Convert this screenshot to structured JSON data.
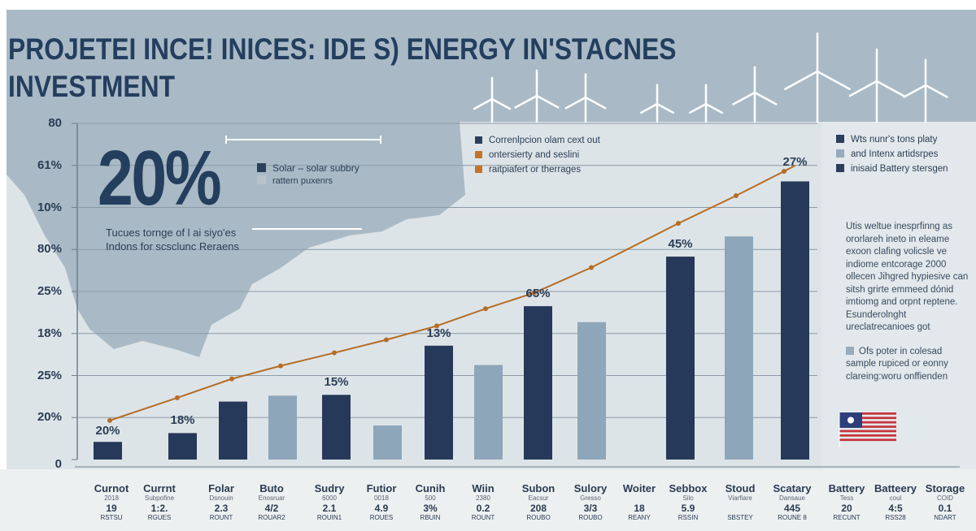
{
  "title_lines": [
    "PROJETEI INCE! INICES: IDE S) ENERGY IN'STACNES",
    "INVESTMENT"
  ],
  "highlight": {
    "value": "20%",
    "caption_lines": [
      "Tucues tornge of l ai siyo'es",
      "Indons for scsclunc Reraens"
    ]
  },
  "legend_left": [
    {
      "label": "Solar – solar subbry",
      "color": "#2b3f5c"
    },
    {
      "label": "rattern puxenrs",
      "color": "#b7c3cc"
    }
  ],
  "legend_center": [
    {
      "label": "Correnlpcion olam cext out",
      "color": "#2b3f5c"
    },
    {
      "label": "ontersierty and seslini",
      "color": "#c4742a"
    },
    {
      "label": "raitpiafert or therrages",
      "color": "#c4742a"
    }
  ],
  "legend_right": [
    {
      "label": "Wts nunr's tons platy",
      "color": "#2b3f5c"
    },
    {
      "label": "and Intenx artidsrpes",
      "color": "#97abbb"
    },
    {
      "label": "inisaid Battery stersgen",
      "color": "#2b3f5c"
    }
  ],
  "side_paragraph": "Utis weltue inesprfinng as ororlareh ineto in eleame exoon clafing volicsle ve indiome entcorage 2000 ollecen Jihgred hypiesive can sitsh grirte emmeed dónid imtiomg and orpnt reptene. Esunderolnght ureclatrecanioes got",
  "side_note": "Ofs poter in colesad sample rupiced or eonny clareing:woru onffienden",
  "colors": {
    "dark_bar": "#26395a",
    "light_bar": "#8ea6b9",
    "line": "#b56d24",
    "map": "#a9bac6",
    "background": "#dde4e8"
  },
  "chart_data": {
    "type": "bar+line",
    "title": "",
    "xlabel": "",
    "ylabel": "",
    "y_tick_labels": [
      "0",
      "20%",
      "25%",
      "18%",
      "25%",
      "80%",
      "10%",
      "61%",
      "80"
    ],
    "ylim": [
      0,
      8
    ],
    "grid": true,
    "bars": [
      {
        "value": 0.42,
        "shade": "dark",
        "label": "20%"
      },
      {
        "value": 0.63,
        "shade": "dark",
        "label": "18%"
      },
      {
        "value": 1.38,
        "shade": "dark",
        "label": ""
      },
      {
        "value": 1.52,
        "shade": "light",
        "label": ""
      },
      {
        "value": 1.54,
        "shade": "dark",
        "label": "15%"
      },
      {
        "value": 0.81,
        "shade": "light",
        "label": ""
      },
      {
        "value": 2.71,
        "shade": "dark",
        "label": "13%"
      },
      {
        "value": 2.25,
        "shade": "light",
        "label": ""
      },
      {
        "value": 3.65,
        "shade": "dark",
        "label": "65%"
      },
      {
        "value": 3.27,
        "shade": "light",
        "label": ""
      },
      {
        "value": 4.83,
        "shade": "dark",
        "label": "45%"
      },
      {
        "value": 5.31,
        "shade": "light",
        "label": ""
      },
      {
        "value": 6.62,
        "shade": "dark",
        "label": "27%"
      }
    ],
    "line": [
      0.93,
      1.47,
      1.92,
      2.23,
      2.54,
      2.85,
      3.18,
      3.59,
      3.97,
      4.57,
      5.62,
      6.28,
      6.86
    ],
    "categories": [
      {
        "name": "Curnot",
        "sub": "2018",
        "value": "19",
        "tag": "RSTSU"
      },
      {
        "name": "Currnt",
        "sub": "Subpofine",
        "value": "1:2.",
        "tag": "RGUES"
      },
      {
        "name": "Folar",
        "sub": "Dsnouin",
        "value": "2.3",
        "tag": "ROUNT"
      },
      {
        "name": "Buto",
        "sub": "Enosruar",
        "value": "4/2",
        "tag": "ROUAR2"
      },
      {
        "name": "Sudry",
        "sub": "6000",
        "value": "2.1",
        "tag": "ROUIN1"
      },
      {
        "name": "Futior",
        "sub": "0018",
        "value": "4.9",
        "tag": "ROUES"
      },
      {
        "name": "Cunih",
        "sub": "500",
        "value": "3%",
        "tag": "RBUIN"
      },
      {
        "name": "Wiin",
        "sub": "2380",
        "value": "0.2",
        "tag": "ROUNT"
      },
      {
        "name": "Subon",
        "sub": "Eacsur",
        "value": "208",
        "tag": "ROUBO"
      },
      {
        "name": "Sulory",
        "sub": "Gresso",
        "value": "3/3",
        "tag": "ROUBO"
      },
      {
        "name": "Woiter",
        "sub": "",
        "value": "18",
        "tag": "REANY"
      },
      {
        "name": "Sebbox",
        "sub": "Silo",
        "value": "5.9",
        "tag": "RSSIN"
      },
      {
        "name": "Stoud",
        "sub": "Viarfiare",
        "value": "",
        "tag": "SBSTEY"
      },
      {
        "name": "Scatary",
        "sub": "Dansaue",
        "value": "445",
        "tag": "ROUNE 8"
      },
      {
        "name": "Battery",
        "sub": "Tess",
        "value": "20",
        "tag": "RECUNT"
      },
      {
        "name": "Batteery",
        "sub": "coul",
        "value": "4:5",
        "tag": "RSS28"
      },
      {
        "name": "Storage",
        "sub": "COID",
        "value": "0.1",
        "tag": "NDART"
      }
    ]
  }
}
